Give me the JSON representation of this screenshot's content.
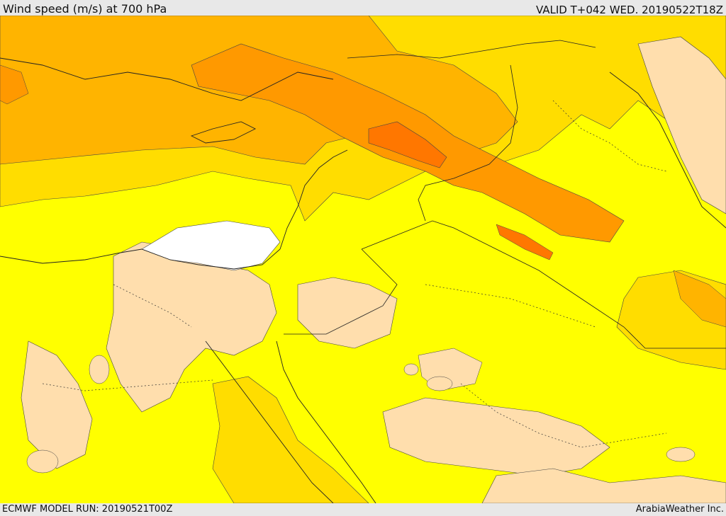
{
  "header": {
    "title": "Wind speed (m/s) at 700 hPa",
    "valid": "VALID T+042 WED. 20190522T18Z"
  },
  "footer": {
    "model_run": "ECMWF MODEL RUN: 20190521T00Z",
    "credit": "ArabiaWeather Inc."
  },
  "colors": {
    "level_0": "#ffdead",
    "level_1": "#ffff00",
    "level_2": "#ffdd00",
    "level_3": "#ffb400",
    "level_4": "#ff9900",
    "level_5": "#ff7700",
    "no_data": "#ffffff"
  }
}
